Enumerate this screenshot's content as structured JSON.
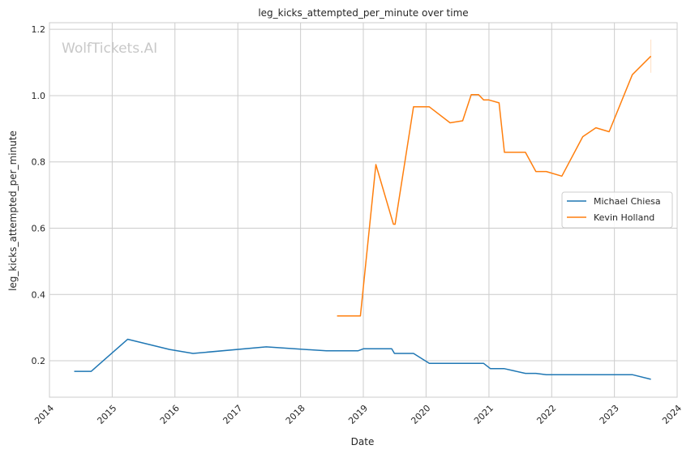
{
  "chart_data": {
    "type": "line",
    "title": "leg_kicks_attempted_per_minute over time",
    "xlabel": "Date",
    "ylabel": "leg_kicks_attempted_per_minute",
    "watermark": "WolfTickets.AI",
    "xlim": [
      "2014-01-01",
      "2024-01-01"
    ],
    "ylim": [
      0.09,
      1.22
    ],
    "x_ticks": [
      "2014",
      "2015",
      "2016",
      "2017",
      "2018",
      "2019",
      "2020",
      "2021",
      "2022",
      "2023",
      "2024"
    ],
    "y_ticks": [
      "0.2",
      "0.4",
      "0.6",
      "0.8",
      "1.0",
      "1.2"
    ],
    "grid": true,
    "legend_position": "center-right",
    "series": [
      {
        "name": "Michael Chiesa",
        "color": "#1f77b4",
        "points": [
          [
            "2014-05-25",
            0.168
          ],
          [
            "2014-09-01",
            0.168
          ],
          [
            "2015-04-01",
            0.265
          ],
          [
            "2015-12-01",
            0.234
          ],
          [
            "2016-04-15",
            0.222
          ],
          [
            "2017-06-15",
            0.242
          ],
          [
            "2018-06-01",
            0.23
          ],
          [
            "2018-12-01",
            0.23
          ],
          [
            "2019-01-01",
            0.236
          ],
          [
            "2019-06-15",
            0.236
          ],
          [
            "2019-07-01",
            0.222
          ],
          [
            "2019-10-20",
            0.222
          ],
          [
            "2020-01-20",
            0.192
          ],
          [
            "2020-12-01",
            0.192
          ],
          [
            "2021-01-10",
            0.176
          ],
          [
            "2021-04-01",
            0.176
          ],
          [
            "2021-08-01",
            0.162
          ],
          [
            "2021-10-01",
            0.162
          ],
          [
            "2021-12-01",
            0.158
          ],
          [
            "2023-04-15",
            0.158
          ],
          [
            "2023-08-01",
            0.144
          ]
        ]
      },
      {
        "name": "Kevin Holland",
        "color": "#ff7f0e",
        "points": [
          [
            "2018-08-01",
            0.335
          ],
          [
            "2018-12-15",
            0.335
          ],
          [
            "2019-03-15",
            0.792
          ],
          [
            "2019-06-25",
            0.612
          ],
          [
            "2019-07-05",
            0.612
          ],
          [
            "2019-10-20",
            0.966
          ],
          [
            "2020-01-20",
            0.966
          ],
          [
            "2020-05-20",
            0.918
          ],
          [
            "2020-08-01",
            0.924
          ],
          [
            "2020-09-20",
            1.003
          ],
          [
            "2020-11-01",
            1.003
          ],
          [
            "2020-12-01",
            0.987
          ],
          [
            "2021-01-01",
            0.987
          ],
          [
            "2021-03-01",
            0.978
          ],
          [
            "2021-04-01",
            0.829
          ],
          [
            "2021-08-01",
            0.829
          ],
          [
            "2021-10-01",
            0.771
          ],
          [
            "2021-12-01",
            0.771
          ],
          [
            "2022-03-01",
            0.757
          ],
          [
            "2022-07-01",
            0.876
          ],
          [
            "2022-09-15",
            0.903
          ],
          [
            "2022-12-01",
            0.891
          ],
          [
            "2023-04-15",
            1.063
          ],
          [
            "2023-08-01",
            1.119
          ]
        ]
      }
    ]
  }
}
